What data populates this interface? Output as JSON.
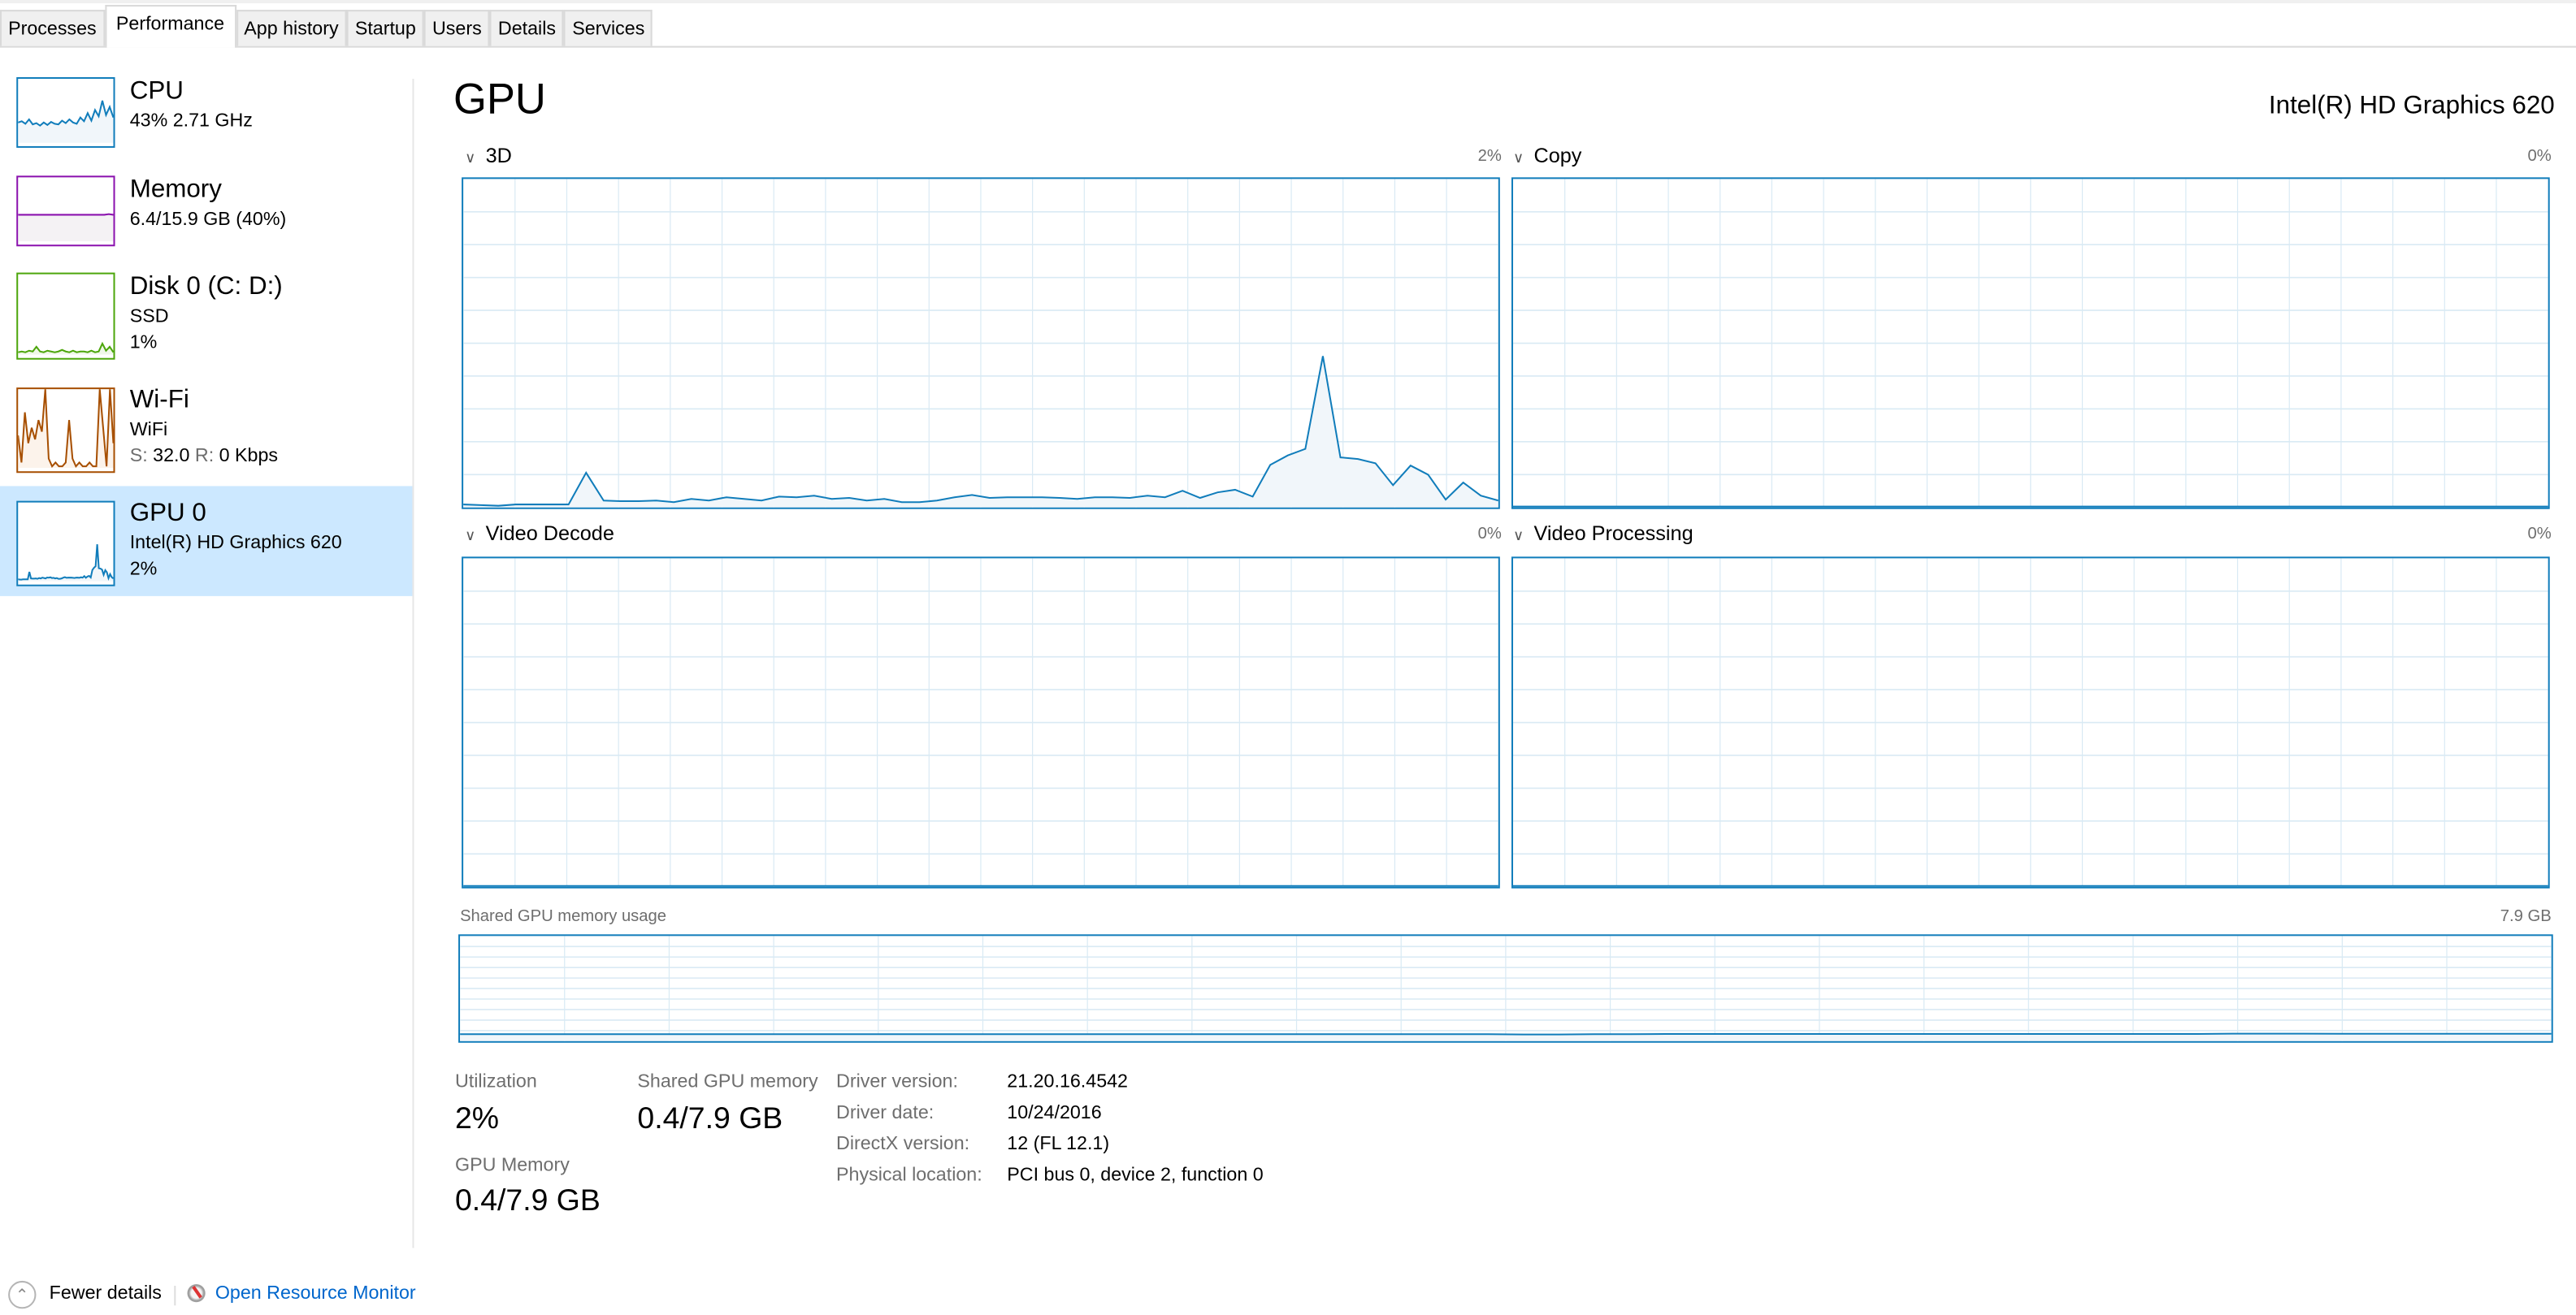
{
  "tabs": [
    {
      "label": "Processes"
    },
    {
      "label": "Performance",
      "selected": true
    },
    {
      "label": "App history"
    },
    {
      "label": "Startup"
    },
    {
      "label": "Users"
    },
    {
      "label": "Details"
    },
    {
      "label": "Services"
    }
  ],
  "sidebar": {
    "items": [
      {
        "title": "CPU",
        "line1": "43%  2.71 GHz",
        "color": "#117dbb",
        "fill": "#f1f6fa",
        "spark": [
          30,
          32,
          28,
          35,
          27,
          29,
          25,
          30,
          26,
          31,
          28,
          27,
          33,
          29,
          35,
          30,
          28,
          38,
          32,
          45,
          33,
          50,
          40,
          65,
          42,
          55,
          38
        ]
      },
      {
        "title": "Memory",
        "line1": "6.4/15.9 GB (40%)",
        "color": "#8b12ae",
        "fill": "#f4f2f4",
        "spark": [
          40,
          40,
          40,
          40,
          40,
          40,
          40,
          40,
          40,
          40,
          40,
          40,
          40,
          40,
          40,
          40,
          40,
          40,
          40,
          40,
          41,
          40
        ]
      },
      {
        "title": "Disk 0 (C: D:)",
        "line1": "SSD",
        "line2": "1%",
        "color": "#4da60c",
        "fill": "#eff7e9",
        "spark": [
          1,
          2,
          1,
          3,
          2,
          8,
          2,
          1,
          3,
          2,
          1,
          2,
          4,
          2,
          1,
          3,
          1,
          2,
          2,
          1,
          3,
          1,
          2,
          12,
          3,
          8,
          1
        ]
      },
      {
        "title": "Wi-Fi",
        "line1": "WiFi",
        "line2_label_s": "S:",
        "line2_s": "32.0",
        "line2_label_r": "R:",
        "line2_r": "0 Kbps",
        "color": "#a74f01",
        "fill": "#fcf3eb",
        "spark": [
          40,
          5,
          70,
          30,
          50,
          35,
          60,
          45,
          100,
          10,
          0,
          5,
          0,
          0,
          5,
          60,
          10,
          0,
          5,
          0,
          0,
          5,
          0,
          0,
          100,
          50,
          0,
          100,
          30
        ]
      },
      {
        "title": "GPU 0",
        "line1": "Intel(R) HD Graphics 620",
        "line2": "2%",
        "color": "#117dbb",
        "fill": "#f1f6fa",
        "selected": true
      }
    ]
  },
  "main": {
    "title": "GPU",
    "device_name": "Intel(R) HD Graphics 620",
    "engines": [
      {
        "label": "3D",
        "value": "2%"
      },
      {
        "label": "Copy",
        "value": "0%"
      },
      {
        "label": "Video Decode",
        "value": "0%"
      },
      {
        "label": "Video Processing",
        "value": "0%"
      }
    ],
    "shared_memory_chart": {
      "label": "Shared GPU memory usage",
      "max": "7.9 GB"
    },
    "stats": {
      "utilization_label": "Utilization",
      "utilization_value": "2%",
      "shared_label": "Shared GPU memory",
      "shared_value": "0.4/7.9 GB",
      "gpu_memory_label": "GPU Memory",
      "gpu_memory_value": "0.4/7.9 GB"
    },
    "details": [
      {
        "label": "Driver version:",
        "value": "21.20.16.4542"
      },
      {
        "label": "Driver date:",
        "value": "10/24/2016"
      },
      {
        "label": "DirectX version:",
        "value": "12 (FL 12.1)"
      },
      {
        "label": "Physical location:",
        "value": "PCI bus 0, device 2, function 0"
      }
    ]
  },
  "footer": {
    "fewer_details": "Fewer details",
    "resource_monitor": "Open Resource Monitor"
  },
  "colors": {
    "accent": "#117dbb",
    "grid": "#d9eaf4",
    "fill": "#f1f6fa",
    "selected_bg": "#cce8ff",
    "link": "#0066cc"
  },
  "chart_data": [
    {
      "type": "area",
      "name": "3D",
      "ylim": [
        0,
        100
      ],
      "grid": true,
      "values": [
        0.4,
        0.2,
        0,
        0.4,
        0.4,
        0.4,
        0.4,
        10.1,
        1.6,
        1.4,
        1.4,
        1.6,
        1.1,
        2.1,
        1.6,
        2.6,
        2.1,
        1.6,
        2.8,
        2.6,
        3.1,
        2.1,
        2.4,
        1.6,
        2.1,
        1.1,
        1.1,
        1.6,
        2.6,
        3.3,
        2.4,
        2.6,
        2.6,
        2.6,
        2.4,
        2.1,
        2.6,
        2.6,
        2.4,
        3.1,
        2.6,
        4.6,
        2.4,
        4.1,
        4.9,
        2.8,
        12.5,
        15.4,
        17.4,
        45.8,
        14.8,
        14.3,
        13.0,
        6.3,
        12.3,
        9.5,
        1.9,
        7.1,
        3.1,
        1.6
      ]
    },
    {
      "type": "area",
      "name": "Copy",
      "ylim": [
        0,
        100
      ],
      "grid": true,
      "values": []
    },
    {
      "type": "area",
      "name": "Video Decode",
      "ylim": [
        0,
        100
      ],
      "grid": true,
      "values": []
    },
    {
      "type": "area",
      "name": "Video Processing",
      "ylim": [
        0,
        100
      ],
      "grid": true,
      "values": []
    },
    {
      "type": "area",
      "name": "Shared GPU memory usage",
      "ylim": [
        0,
        7.9
      ],
      "grid": true,
      "values": [
        0.4,
        0.4,
        0.4,
        0.4,
        0.4,
        0.4,
        0.4,
        0.4,
        0.4,
        0.4,
        0.4,
        0.4,
        0.4,
        0.4,
        0.4,
        0.4,
        0.4,
        0.4,
        0.4,
        0.4,
        0.4,
        0.4,
        0.4,
        0.4,
        0.4,
        0.4,
        0.4,
        0.4,
        0.4,
        0.4,
        0.38,
        0.38,
        0.4,
        0.4,
        0.42,
        0.42,
        0.42,
        0.42,
        0.42,
        0.42,
        0.42,
        0.42,
        0.42,
        0.42,
        0.42,
        0.42,
        0.42,
        0.42,
        0.42,
        0.42,
        0.44,
        0.44,
        0.44,
        0.43,
        0.43,
        0.43,
        0.43,
        0.43,
        0.43,
        0.43
      ]
    }
  ]
}
